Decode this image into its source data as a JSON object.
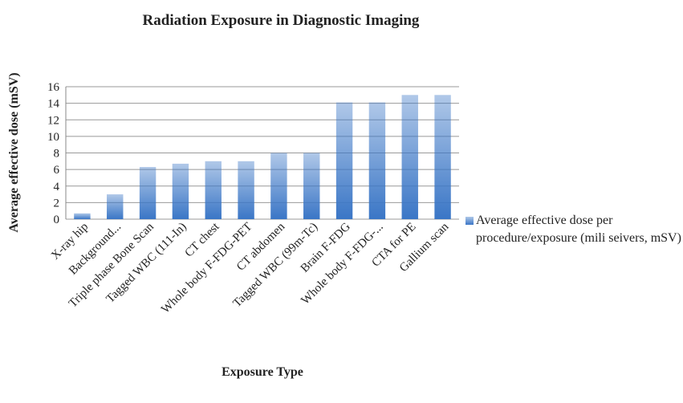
{
  "chart_data": {
    "type": "bar",
    "title": "Radiation Exposure in Diagnostic Imaging",
    "x_label": "Exposure Type",
    "y_label": "Average effective dose  (mSV)",
    "categories": [
      "X-ray hip",
      "Background...",
      "Triple phase Bone Scan",
      "Tagged WBC (111-In)",
      "CT chest",
      "Whole body F-FDG-PET",
      "CT abdomen",
      "Tagged WBC (99m-Tc)",
      "Brain F-FDG",
      "Whole body F-FDG-...",
      "CTA for PE",
      "Gallium scan"
    ],
    "series": [
      {
        "name": "Average effective dose per procedure/exposure (mili seivers, mSV)",
        "color": "#3a76c6",
        "values": [
          0.7,
          3,
          6.3,
          6.7,
          7,
          7,
          8,
          8,
          14.1,
          14.1,
          15,
          15
        ]
      }
    ],
    "ylim": [
      0,
      16
    ],
    "yticks": [
      0,
      2,
      4,
      6,
      8,
      10,
      12,
      14,
      16
    ],
    "grid": true,
    "legend": "right"
  }
}
